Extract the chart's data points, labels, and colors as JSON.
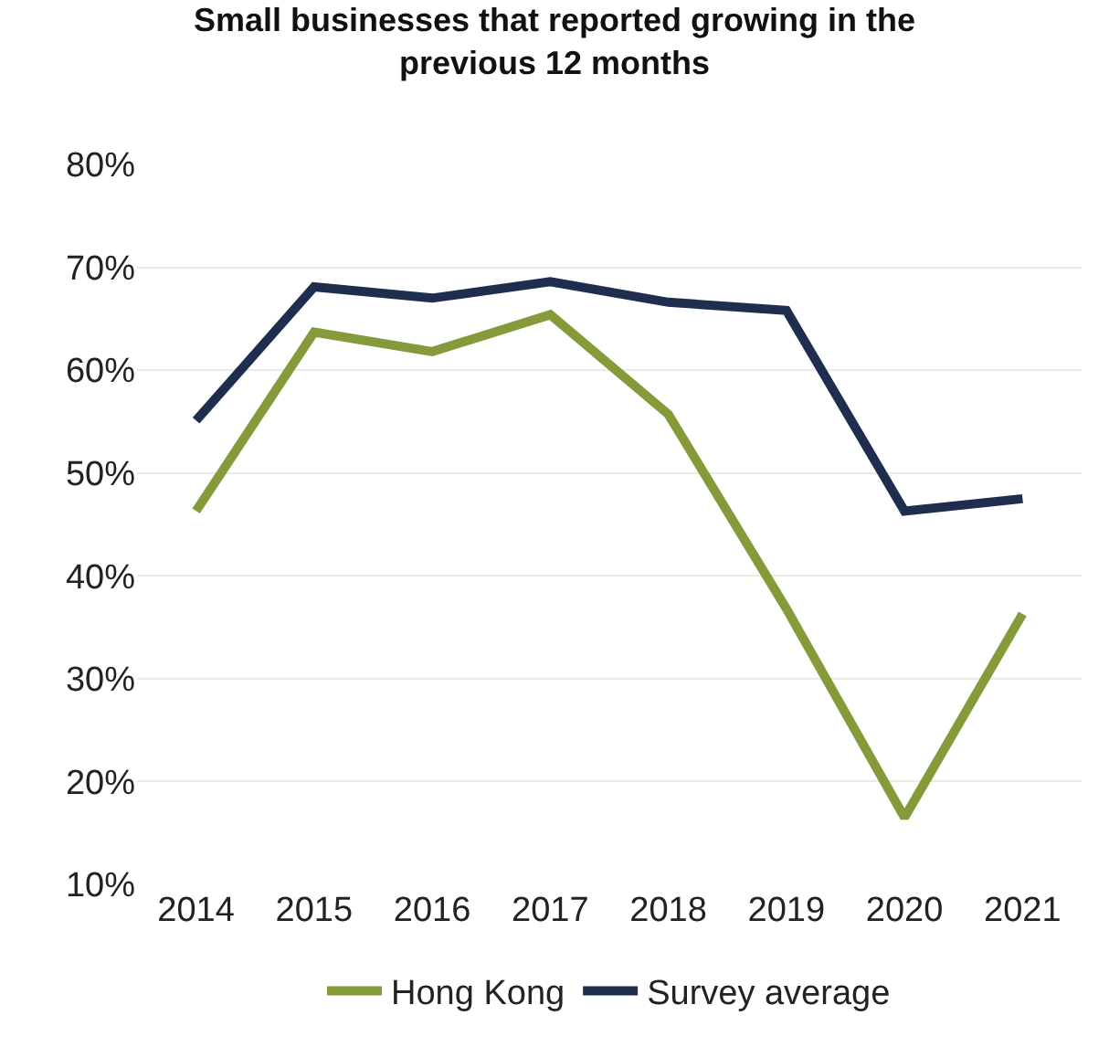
{
  "chart_data": {
    "type": "line",
    "title": "Small businesses that reported growing in the previous 12 months",
    "categories": [
      "2014",
      "2015",
      "2016",
      "2017",
      "2018",
      "2019",
      "2020",
      "2021"
    ],
    "series": [
      {
        "name": "Hong Kong",
        "color": "#859b3a",
        "values": [
          46.3,
          63.7,
          61.8,
          65.4,
          55.7,
          36.8,
          16.5,
          36.3
        ]
      },
      {
        "name": "Survey average",
        "color": "#1f2d4e",
        "values": [
          55.1,
          68.1,
          67.0,
          68.6,
          66.6,
          65.8,
          46.3,
          47.5
        ]
      }
    ],
    "ylim": [
      10,
      80
    ],
    "yticks": [
      {
        "value": 10,
        "label": "10%"
      },
      {
        "value": 20,
        "label": "20%"
      },
      {
        "value": 30,
        "label": "30%"
      },
      {
        "value": 40,
        "label": "40%"
      },
      {
        "value": 50,
        "label": "50%"
      },
      {
        "value": 60,
        "label": "60%"
      },
      {
        "value": 70,
        "label": "70%"
      },
      {
        "value": 80,
        "label": "80%"
      }
    ],
    "grid": "y",
    "legend": "bottom",
    "marker": "none",
    "line_style": "solid"
  }
}
